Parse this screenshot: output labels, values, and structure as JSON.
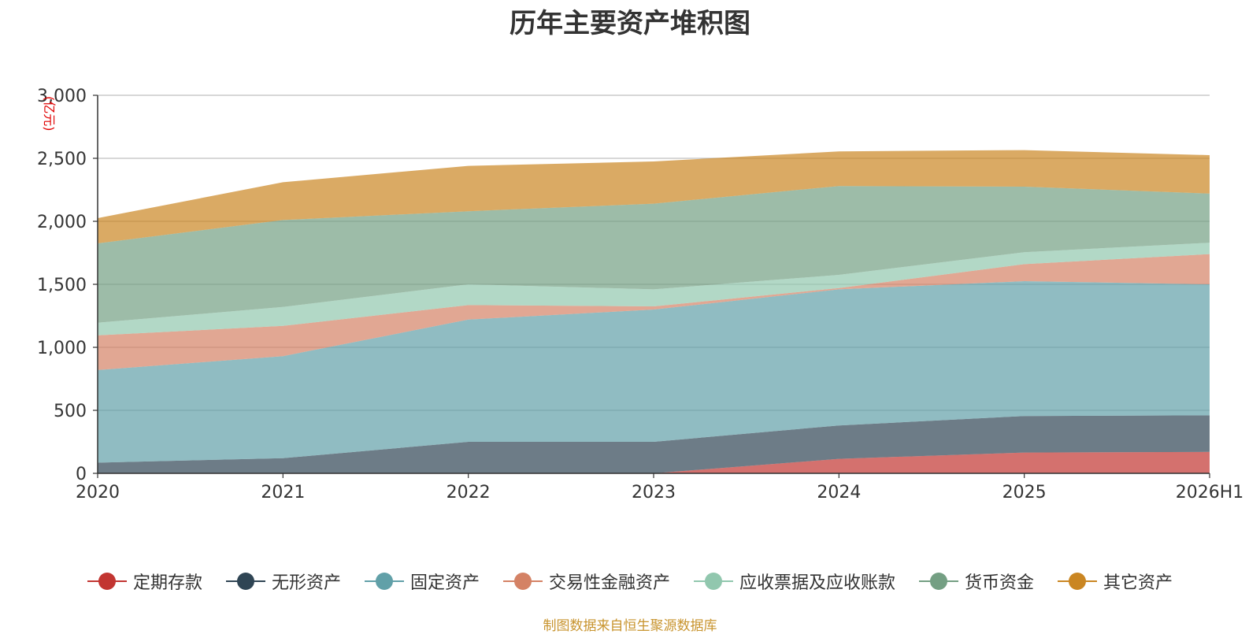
{
  "chart_data": {
    "type": "area",
    "stacked": true,
    "title": "历年主要资产堆积图",
    "unit": "(亿元)",
    "categories": [
      "2020",
      "2021",
      "2022",
      "2023",
      "2024",
      "2025",
      "2026H1"
    ],
    "ylim": [
      0,
      3000
    ],
    "yticks": [
      "0",
      "500",
      "1,000",
      "1,500",
      "2,000",
      "2,500",
      "3,000"
    ],
    "ytick_values": [
      0,
      500,
      1000,
      1500,
      2000,
      2500,
      3000
    ],
    "grid": true,
    "legend_position": "bottom",
    "series": [
      {
        "name": "定期存款",
        "color": "#c23531",
        "values": [
          0,
          0,
          0,
          0,
          115,
          165,
          170
        ]
      },
      {
        "name": "无形资产",
        "color": "#2f4554",
        "values": [
          85,
          120,
          250,
          250,
          265,
          290,
          290
        ]
      },
      {
        "name": "固定资产",
        "color": "#61a0a8",
        "values": [
          735,
          810,
          970,
          1050,
          1080,
          1070,
          1040
        ]
      },
      {
        "name": "交易性金融资产",
        "color": "#d48265",
        "values": [
          275,
          240,
          115,
          25,
          10,
          135,
          240
        ]
      },
      {
        "name": "应收票据及应收账款",
        "color": "#91c7ae",
        "values": [
          100,
          150,
          165,
          135,
          105,
          95,
          90
        ]
      },
      {
        "name": "货币资金",
        "color": "#749f83",
        "values": [
          630,
          690,
          580,
          680,
          705,
          520,
          390
        ]
      },
      {
        "name": "其它资产",
        "color": "#ca8622",
        "values": [
          200,
          300,
          360,
          335,
          275,
          290,
          305
        ]
      }
    ]
  },
  "source_text": "制图数据来自恒生聚源数据库"
}
